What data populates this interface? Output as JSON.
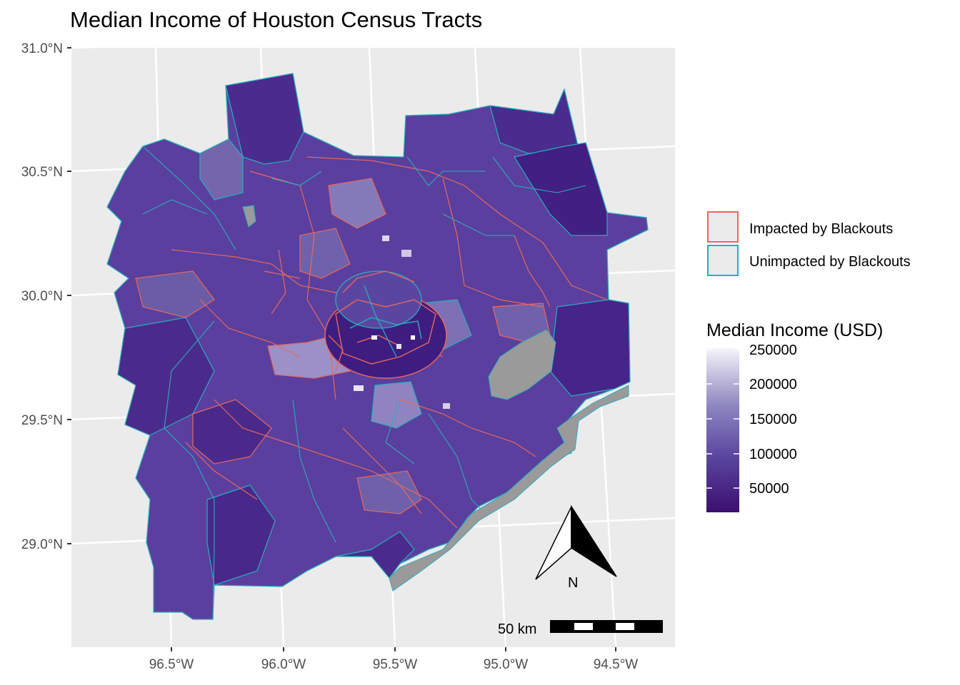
{
  "title": "Median Income of Houston Census Tracts",
  "axes": {
    "y_ticks": [
      {
        "value": 31.0,
        "label": "31.0°N"
      },
      {
        "value": 30.5,
        "label": "30.5°N"
      },
      {
        "value": 30.0,
        "label": "30.0°N"
      },
      {
        "value": 29.5,
        "label": "29.5°N"
      },
      {
        "value": 29.0,
        "label": "29.0°N"
      }
    ],
    "x_ticks": [
      {
        "value": -96.5,
        "label": "96.5°W"
      },
      {
        "value": -96.0,
        "label": "96.0°W"
      },
      {
        "value": -95.5,
        "label": "95.5°W"
      },
      {
        "value": -95.0,
        "label": "95.0°W"
      },
      {
        "value": -94.5,
        "label": "94.5°W"
      }
    ]
  },
  "legend_outline": {
    "items": [
      {
        "label": "Impacted by Blackouts",
        "color": "#e8675f"
      },
      {
        "label": "Unimpacted by Blackouts",
        "color": "#2aadbd"
      }
    ]
  },
  "legend_fill": {
    "title": "Median Income (USD)",
    "ticks": [
      "250000",
      "200000",
      "150000",
      "100000",
      "50000"
    ],
    "range": [
      20000,
      250000
    ],
    "colors": {
      "low": "#3b0f70",
      "mid": "#6a5aa8",
      "high": "#f2f0f7"
    }
  },
  "scale_bar": {
    "label": "50 km"
  },
  "north_arrow": {
    "label": "N"
  },
  "colors": {
    "panel": "#ebebeb",
    "water": "#9a9a9a",
    "tract_dark": "#4a2a8c",
    "tract_mid": "#5e4ba0"
  }
}
